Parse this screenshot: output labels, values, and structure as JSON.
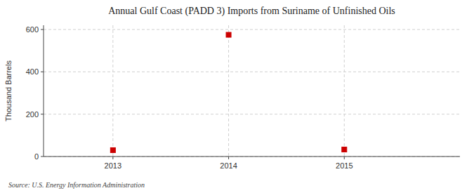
{
  "chart_data": {
    "type": "scatter",
    "title": "Annual Gulf Coast (PADD 3) Imports from Suriname of Unfinished Oils",
    "ylabel": "Thousand Barrels",
    "annotations": [
      "Source: U.S. Energy Information Administration"
    ],
    "x": [
      2013,
      2014,
      2015
    ],
    "values": [
      30,
      575,
      33
    ],
    "color": "#cc0000",
    "marker": "square",
    "xlim": [
      2012.4,
      2016.0
    ],
    "ylim": [
      0,
      620
    ],
    "xticks": [
      2013,
      2014,
      2015
    ],
    "yticks": [
      0,
      200,
      400,
      600
    ],
    "grid": true
  }
}
